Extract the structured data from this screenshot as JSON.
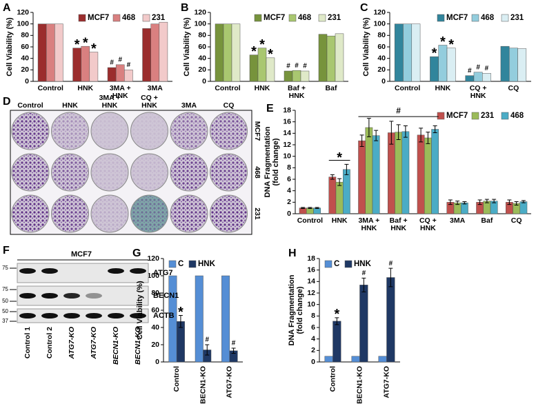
{
  "chart_data": [
    {
      "type": "bar",
      "panel_label": "A",
      "ylabel": "Cell Viability (%)",
      "categories": [
        "Control",
        "HNK",
        "3MA + HNK",
        "3MA"
      ],
      "series": [
        {
          "name": "MCF7",
          "color": "#9b2d2d",
          "values": [
            100,
            58,
            24,
            92
          ],
          "markers": [
            null,
            "*",
            "#",
            null
          ]
        },
        {
          "name": "468",
          "color": "#d98080",
          "values": [
            100,
            61,
            29,
            100
          ],
          "markers": [
            null,
            "*",
            "#",
            null
          ]
        },
        {
          "name": "231",
          "color": "#f2caca",
          "values": [
            100,
            51,
            20,
            103
          ],
          "markers": [
            null,
            "*",
            "#",
            null
          ]
        }
      ],
      "ylim": [
        0,
        120
      ],
      "yticks": [
        0,
        20,
        40,
        60,
        80,
        100,
        120
      ],
      "legend": "top-right"
    },
    {
      "type": "bar",
      "panel_label": "B",
      "ylabel": "Cell Viability (%)",
      "categories": [
        "Control",
        "HNK",
        "Baf + HNK",
        "Baf"
      ],
      "series": [
        {
          "name": "MCF7",
          "color": "#77933c",
          "values": [
            100,
            46,
            18,
            82
          ],
          "markers": [
            null,
            "*",
            "#",
            null
          ]
        },
        {
          "name": "468",
          "color": "#a9c770",
          "values": [
            100,
            58,
            19,
            79
          ],
          "markers": [
            null,
            "*",
            "#",
            null
          ]
        },
        {
          "name": "231",
          "color": "#dfe9c8",
          "values": [
            100,
            41,
            18,
            83
          ],
          "markers": [
            null,
            "*",
            "#",
            null
          ]
        }
      ],
      "ylim": [
        0,
        120
      ],
      "yticks": [
        0,
        20,
        40,
        60,
        80,
        100,
        120
      ],
      "legend": "top-right"
    },
    {
      "type": "bar",
      "panel_label": "C",
      "ylabel": "Cell Viability (%)",
      "categories": [
        "Control",
        "HNK",
        "CQ + HNK",
        "CQ"
      ],
      "series": [
        {
          "name": "MCF7",
          "color": "#31859c",
          "values": [
            100,
            43,
            10,
            61
          ],
          "markers": [
            null,
            "*",
            "#",
            null
          ]
        },
        {
          "name": "468",
          "color": "#93cddd",
          "values": [
            100,
            63,
            16,
            58
          ],
          "markers": [
            null,
            "*",
            "#",
            null
          ]
        },
        {
          "name": "231",
          "color": "#daeef3",
          "values": [
            100,
            58,
            14,
            57
          ],
          "markers": [
            null,
            "*",
            "#",
            null
          ]
        }
      ],
      "ylim": [
        0,
        120
      ],
      "yticks": [
        0,
        20,
        40,
        60,
        80,
        100,
        120
      ],
      "legend": "top-right"
    },
    {
      "type": "bar",
      "panel_label": "E",
      "ylabel": "DNA Fragmentation (fold change)",
      "categories": [
        "Control",
        "HNK",
        "3MA + HNK",
        "Baf + HNK",
        "CQ + HNK",
        "3MA",
        "Baf",
        "CQ"
      ],
      "series": [
        {
          "name": "MCF7",
          "color": "#c0504d",
          "values": [
            1,
            6.4,
            12.7,
            14.1,
            13.7,
            2.0,
            2.0,
            2.0
          ],
          "errors": [
            0.1,
            0.4,
            1.0,
            2.0,
            1.2,
            0.4,
            0.4,
            0.4
          ]
        },
        {
          "name": "231",
          "color": "#9bbb59",
          "values": [
            1,
            5.5,
            15.0,
            14.2,
            13.2,
            1.9,
            2.2,
            1.8
          ],
          "errors": [
            0.1,
            0.6,
            1.6,
            1.3,
            1.0,
            0.3,
            0.3,
            0.3
          ]
        },
        {
          "name": "468",
          "color": "#4bacc6",
          "values": [
            1,
            7.7,
            13.6,
            14.3,
            14.7,
            1.9,
            2.2,
            2.1
          ],
          "errors": [
            0.1,
            0.9,
            0.9,
            1.0,
            0.6,
            0.2,
            0.3,
            0.2
          ]
        }
      ],
      "annotations": [
        {
          "text": "*"
        },
        {
          "text": "#"
        }
      ],
      "ylim": [
        0,
        18
      ],
      "yticks": [
        0,
        2,
        4,
        6,
        8,
        10,
        12,
        14,
        16,
        18
      ],
      "legend": "top-right"
    },
    {
      "type": "bar",
      "panel_label": "G",
      "ylabel": "Cell Viability (%)",
      "categories": [
        "Control",
        "BECN1-KO",
        "ATG7-KO"
      ],
      "rotate_labels": true,
      "series": [
        {
          "name": "C",
          "color": "#558ed5",
          "values": [
            100,
            100,
            100
          ]
        },
        {
          "name": "HNK",
          "color": "#1f3864",
          "values": [
            47,
            14,
            13
          ],
          "errors": [
            7,
            6,
            3
          ],
          "markers": [
            "*",
            "#",
            "#"
          ]
        }
      ],
      "ylim": [
        0,
        120
      ],
      "yticks": [
        0,
        20,
        40,
        60,
        80,
        100,
        120
      ],
      "legend": "top-left"
    },
    {
      "type": "bar",
      "panel_label": "H",
      "ylabel": "DNA Fragmentation (fold change)",
      "categories": [
        "Control",
        "BECN1-KO",
        "ATG7-KO"
      ],
      "rotate_labels": true,
      "series": [
        {
          "name": "C",
          "color": "#558ed5",
          "values": [
            1,
            1,
            1
          ]
        },
        {
          "name": "HNK",
          "color": "#1f3864",
          "values": [
            7.1,
            13.4,
            14.7
          ],
          "errors": [
            0.6,
            1.2,
            1.6
          ],
          "markers": [
            "*",
            "#",
            "#"
          ]
        }
      ],
      "ylim": [
        0,
        18
      ],
      "yticks": [
        0,
        2,
        4,
        6,
        8,
        10,
        12,
        14,
        16,
        18
      ],
      "legend": "top-left"
    }
  ],
  "colony_panel": {
    "panel_label": "D",
    "columns": [
      "Control",
      "HNK",
      "3MA + HNK",
      "CQ + HNK",
      "3MA",
      "CQ"
    ],
    "rows": [
      "MCF7",
      "468",
      "231"
    ]
  },
  "blot_panel": {
    "panel_label": "F",
    "title": "MCF7",
    "markers": [
      "75",
      "75",
      "50",
      "50",
      "37"
    ],
    "proteins": [
      "ATG7",
      "BECN1",
      "ACTB"
    ],
    "lanes": [
      "Control 1",
      "Control 2",
      "ATG7-KO",
      "ATG7-KO",
      "BECN1-KO",
      "BECN1-KO"
    ]
  }
}
